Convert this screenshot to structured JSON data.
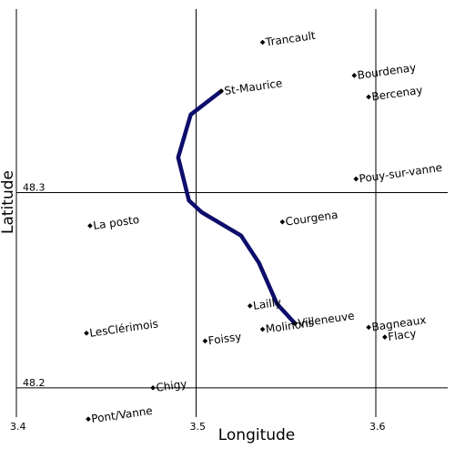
{
  "map": {
    "x_axis": {
      "label": "Longitude",
      "range": [
        3.4,
        3.64
      ],
      "ticks": [
        {
          "value": 3.4,
          "label": "3.4"
        },
        {
          "value": 3.5,
          "label": "3.5"
        },
        {
          "value": 3.6,
          "label": "3.6"
        }
      ],
      "gridlines": [
        3.5,
        3.6
      ]
    },
    "y_axis": {
      "label": "Latitude",
      "range": [
        48.185,
        48.394
      ],
      "ticks": [
        {
          "value": 48.3,
          "label": "48.3"
        },
        {
          "value": 48.2,
          "label": "48.2"
        }
      ],
      "gridlines": [
        48.3,
        48.2
      ]
    },
    "route": {
      "color": "#0d0d6b",
      "points": [
        {
          "lon": 3.514,
          "lat": 48.352
        },
        {
          "lon": 3.497,
          "lat": 48.34
        },
        {
          "lon": 3.49,
          "lat": 48.318
        },
        {
          "lon": 3.496,
          "lat": 48.296
        },
        {
          "lon": 3.503,
          "lat": 48.29
        },
        {
          "lon": 3.525,
          "lat": 48.278
        },
        {
          "lon": 3.535,
          "lat": 48.264
        },
        {
          "lon": 3.545,
          "lat": 48.243
        },
        {
          "lon": 3.555,
          "lat": 48.233
        }
      ]
    },
    "places": [
      {
        "name": "Trancault",
        "lon": 3.537,
        "lat": 48.377
      },
      {
        "name": "Bourdenay",
        "lon": 3.588,
        "lat": 48.36
      },
      {
        "name": "St-Maurice",
        "lon": 3.514,
        "lat": 48.352
      },
      {
        "name": "Bercenay",
        "lon": 3.596,
        "lat": 48.349
      },
      {
        "name": "Pouy-sur-vanne",
        "lon": 3.589,
        "lat": 48.307
      },
      {
        "name": "Courgena",
        "lon": 3.548,
        "lat": 48.285
      },
      {
        "name": "La posto",
        "lon": 3.441,
        "lat": 48.283
      },
      {
        "name": "Lailly",
        "lon": 3.53,
        "lat": 48.242
      },
      {
        "name": "Villeneuve",
        "lon": 3.555,
        "lat": 48.233
      },
      {
        "name": "Molinons",
        "lon": 3.537,
        "lat": 48.23
      },
      {
        "name": "Bagneaux",
        "lon": 3.596,
        "lat": 48.231
      },
      {
        "name": "Flacy",
        "lon": 3.605,
        "lat": 48.226
      },
      {
        "name": "LesClérimois",
        "lon": 3.439,
        "lat": 48.228
      },
      {
        "name": "Foissy",
        "lon": 3.505,
        "lat": 48.224
      },
      {
        "name": "Chigy",
        "lon": 3.476,
        "lat": 48.2
      },
      {
        "name": "Pont/Vanne",
        "lon": 3.44,
        "lat": 48.184
      }
    ]
  }
}
